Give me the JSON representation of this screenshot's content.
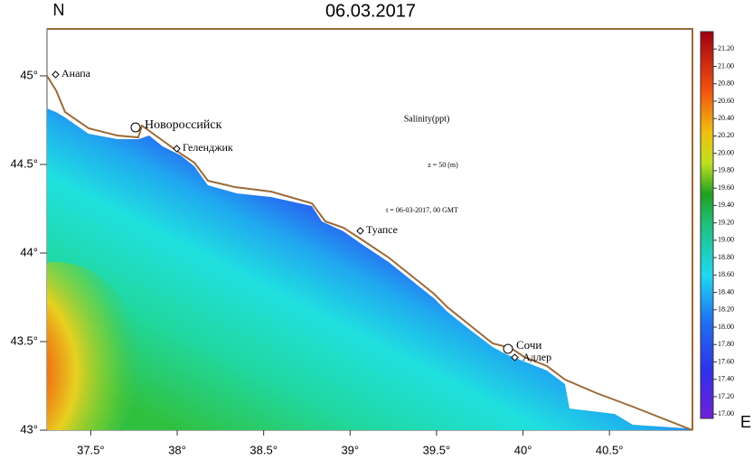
{
  "title": "06.03.2017",
  "north_label": "N",
  "east_label": "E",
  "annotations": [
    "Salinity(ppt)",
    "z = 50 (m)",
    "t = 06-03-2017, 00 GMT"
  ],
  "cities": [
    "Анапа",
    "Новороссийск",
    "Геленджик",
    "Туапсе",
    "Сочи",
    "Адлер"
  ],
  "map": {
    "lon_lim": [
      37.247,
      40.98
    ],
    "lat_lim": [
      43,
      45.265
    ],
    "lon_ticks": [
      {
        "value": 37.5,
        "label": "37.5°"
      },
      {
        "value": 38,
        "label": "38°"
      },
      {
        "value": 38.5,
        "label": "38.5°"
      },
      {
        "value": 39,
        "label": "39°"
      },
      {
        "value": 39.5,
        "label": "39.5°"
      },
      {
        "value": 40,
        "label": "40°"
      },
      {
        "value": 40.5,
        "label": "40.5°"
      }
    ],
    "lat_ticks": [
      {
        "value": 43,
        "label": "43°"
      },
      {
        "value": 43.5,
        "label": "43.5°"
      },
      {
        "value": 44,
        "label": "44°"
      },
      {
        "value": 44.5,
        "label": "44.5°"
      },
      {
        "value": 45,
        "label": "45°"
      }
    ]
  },
  "colorbar": {
    "lim": [
      16.95,
      21.4
    ],
    "ticks": [
      {
        "value": 17,
        "label": "17.00"
      },
      {
        "value": 17.2,
        "label": "17.20"
      },
      {
        "value": 17.4,
        "label": "17.40"
      },
      {
        "value": 17.6,
        "label": "17.60"
      },
      {
        "value": 17.8,
        "label": "17.80"
      },
      {
        "value": 18,
        "label": "18.00"
      },
      {
        "value": 18.2,
        "label": "18.20"
      },
      {
        "value": 18.4,
        "label": "18.40"
      },
      {
        "value": 18.6,
        "label": "18.60"
      },
      {
        "value": 18.8,
        "label": "18.80"
      },
      {
        "value": 19,
        "label": "19.00"
      },
      {
        "value": 19.2,
        "label": "19.20"
      },
      {
        "value": 19.4,
        "label": "19.40"
      },
      {
        "value": 19.6,
        "label": "19.60"
      },
      {
        "value": 19.8,
        "label": "19.80"
      },
      {
        "value": 20,
        "label": "20.00"
      },
      {
        "value": 20.2,
        "label": "20.20"
      },
      {
        "value": 20.4,
        "label": "20.40"
      },
      {
        "value": 20.6,
        "label": "20.60"
      },
      {
        "value": 20.8,
        "label": "20.80"
      },
      {
        "value": 21,
        "label": "21.00"
      },
      {
        "value": 21.2,
        "label": "21.20"
      }
    ]
  }
}
